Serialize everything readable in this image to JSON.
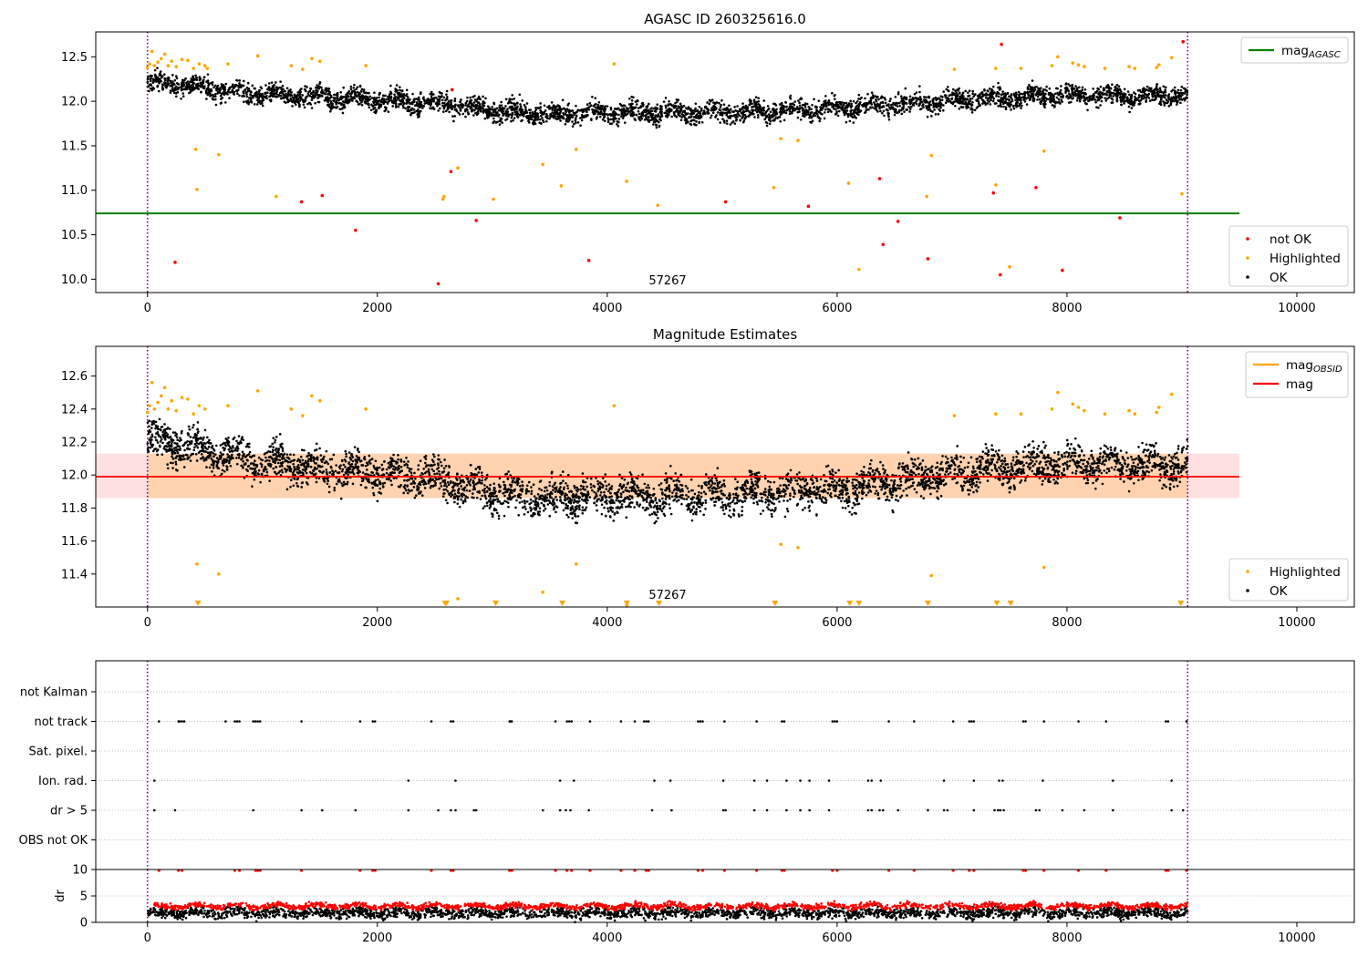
{
  "chart_data": [
    {
      "type": "scatter",
      "title": "AGASC ID 260325616.0",
      "xlim": [
        -450,
        10500
      ],
      "ylim": [
        9.85,
        12.78
      ],
      "xticks": [
        0,
        2000,
        4000,
        6000,
        8000,
        10000
      ],
      "yticks": [
        10.0,
        10.5,
        11.0,
        11.5,
        12.0,
        12.5
      ],
      "ytick_labels": [
        "10.0",
        "10.5",
        "11.0",
        "11.5",
        "12.0",
        "12.5"
      ],
      "grid": false,
      "vlines": [
        0,
        9050
      ],
      "hline": {
        "name": "mag_AGASC",
        "value": 10.74,
        "x_range": [
          -450,
          9500
        ],
        "color": "#008000"
      },
      "annotation": {
        "text": "57267",
        "x": 4520,
        "y": 9.9
      },
      "legend_top": {
        "placement": "upper right",
        "items": [
          {
            "label": "mag",
            "sub": "AGASC",
            "color": "#008000",
            "kind": "line"
          }
        ]
      },
      "legend_bottom": {
        "placement": "lower right",
        "items": [
          {
            "label": "not OK",
            "color": "#ff0000",
            "kind": "dot"
          },
          {
            "label": "Highlighted",
            "color": "#ffa500",
            "kind": "dot"
          },
          {
            "label": "OK",
            "color": "#000000",
            "kind": "dot"
          }
        ]
      },
      "series": [
        {
          "name": "OK",
          "color": "#000000",
          "kind": "band",
          "x": [
            0,
            500,
            1000,
            1500,
            2000,
            2500,
            3000,
            3500,
            4000,
            4500,
            5000,
            5500,
            6000,
            6500,
            7000,
            7500,
            8000,
            8500,
            9000
          ],
          "center": [
            12.22,
            12.15,
            12.08,
            12.04,
            12.02,
            11.98,
            11.9,
            11.86,
            11.88,
            11.87,
            11.88,
            11.9,
            11.92,
            11.96,
            12.02,
            12.04,
            12.08,
            12.06,
            12.06
          ],
          "spread": 0.1,
          "n": 4200,
          "x_end": 9050
        },
        {
          "name": "Highlighted",
          "color": "#ffa500",
          "x": [
            0,
            20,
            40,
            60,
            90,
            120,
            150,
            180,
            210,
            250,
            300,
            350,
            400,
            450,
            500,
            520,
            700,
            960,
            1250,
            1350,
            1430,
            1500,
            1900,
            4060,
            7020,
            7380,
            7600,
            7870,
            7920,
            8050,
            8100,
            8150,
            8330,
            8540,
            8590,
            8780,
            8800,
            8910,
            420,
            430,
            620,
            1120,
            2570,
            2580,
            2700,
            3010,
            3440,
            3600,
            3730,
            4170,
            4440,
            5450,
            5510,
            5660,
            6100,
            6190,
            6780,
            6820,
            7380,
            7500,
            7800,
            9000
          ],
          "y": [
            12.38,
            12.42,
            12.56,
            12.4,
            12.44,
            12.48,
            12.53,
            12.4,
            12.45,
            12.39,
            12.47,
            12.46,
            12.37,
            12.42,
            12.4,
            12.37,
            12.42,
            12.51,
            12.4,
            12.36,
            12.48,
            12.45,
            12.4,
            12.42,
            12.36,
            12.37,
            12.37,
            12.4,
            12.5,
            12.43,
            12.41,
            12.39,
            12.37,
            12.39,
            12.37,
            12.38,
            12.41,
            12.49,
            11.46,
            11.01,
            11.4,
            10.93,
            10.9,
            10.93,
            11.25,
            10.9,
            11.29,
            11.05,
            11.46,
            11.1,
            10.83,
            11.03,
            11.58,
            11.56,
            11.08,
            10.11,
            10.93,
            11.39,
            11.06,
            10.14,
            11.44,
            10.96
          ]
        },
        {
          "name": "not OK",
          "color": "#ff0000",
          "x": [
            240,
            1340,
            1520,
            1810,
            2530,
            2640,
            2860,
            3840,
            5030,
            5750,
            6370,
            6400,
            6530,
            6790,
            7360,
            7420,
            7730,
            7960,
            8460,
            9010,
            7430,
            2650
          ],
          "y": [
            10.19,
            10.87,
            10.94,
            10.55,
            9.95,
            11.21,
            10.66,
            10.21,
            10.87,
            10.82,
            11.13,
            10.39,
            10.65,
            10.23,
            10.97,
            10.05,
            11.03,
            10.1,
            10.69,
            12.67,
            12.64,
            12.13
          ]
        }
      ]
    },
    {
      "type": "scatter",
      "title": "Magnitude Estimates",
      "xlim": [
        -450,
        10500
      ],
      "ylim": [
        11.2,
        12.78
      ],
      "xticks": [
        0,
        2000,
        4000,
        6000,
        8000,
        10000
      ],
      "yticks": [
        11.4,
        11.6,
        11.8,
        12.0,
        12.2,
        12.4,
        12.6
      ],
      "ytick_labels": [
        "11.4",
        "11.6",
        "11.8",
        "12.0",
        "12.2",
        "12.4",
        "12.6"
      ],
      "grid": false,
      "vlines": [
        0,
        9050
      ],
      "mag": {
        "name": "mag",
        "value": 11.99,
        "x_range": [
          -450,
          9500
        ],
        "color": "#ff0000",
        "band": [
          11.86,
          12.13
        ]
      },
      "mag_obsid": {
        "name": "mag_OBSID",
        "value": 11.99,
        "x_range": [
          0,
          9050
        ],
        "color": "#ffa500",
        "band": [
          11.86,
          12.13
        ]
      },
      "annotation": {
        "text": "57267",
        "x": 4520,
        "y": 11.26
      },
      "legend_top": {
        "placement": "upper right",
        "items": [
          {
            "label": "mag",
            "sub": "OBSID",
            "color": "#ffa500",
            "kind": "line"
          },
          {
            "label": "mag",
            "sub": "",
            "color": "#ff0000",
            "kind": "line"
          }
        ]
      },
      "legend_bottom": {
        "placement": "lower right",
        "items": [
          {
            "label": "Highlighted",
            "color": "#ffa500",
            "kind": "dot"
          },
          {
            "label": "OK",
            "color": "#000000",
            "kind": "dot"
          }
        ]
      },
      "lower_limit_markers": {
        "color": "#ffa500",
        "y": 11.2,
        "x": [
          440,
          2590,
          2600,
          3030,
          3610,
          4170,
          4450,
          5460,
          6110,
          6190,
          6790,
          7390,
          7510,
          8990
        ]
      },
      "series": [
        {
          "name": "OK",
          "color": "#000000",
          "kind": "band",
          "x": [
            0,
            500,
            1000,
            1500,
            2000,
            2500,
            3000,
            3500,
            4000,
            4500,
            5000,
            5500,
            6000,
            6500,
            7000,
            7500,
            8000,
            8500,
            9000
          ],
          "center": [
            12.22,
            12.15,
            12.08,
            12.04,
            12.02,
            11.98,
            11.9,
            11.86,
            11.88,
            11.87,
            11.88,
            11.9,
            11.92,
            11.96,
            12.02,
            12.04,
            12.08,
            12.06,
            12.06
          ],
          "spread": 0.1,
          "n": 4200,
          "x_end": 9050
        },
        {
          "name": "Highlighted",
          "color": "#ffa500",
          "x": [
            0,
            20,
            40,
            60,
            90,
            120,
            150,
            180,
            210,
            250,
            300,
            350,
            400,
            450,
            500,
            700,
            960,
            1250,
            1350,
            1430,
            1500,
            1900,
            4060,
            7020,
            7380,
            7600,
            7870,
            7920,
            8050,
            8100,
            8150,
            8330,
            8540,
            8590,
            8780,
            8800,
            8910,
            430,
            620,
            2700,
            3440,
            3730,
            5510,
            5660,
            6820,
            7800,
            4170
          ],
          "y": [
            12.38,
            12.42,
            12.56,
            12.4,
            12.44,
            12.48,
            12.53,
            12.4,
            12.45,
            12.39,
            12.47,
            12.46,
            12.37,
            12.42,
            12.4,
            12.42,
            12.51,
            12.4,
            12.36,
            12.48,
            12.45,
            12.4,
            12.42,
            12.36,
            12.37,
            12.37,
            12.4,
            12.5,
            12.43,
            12.41,
            12.39,
            12.37,
            12.39,
            12.37,
            12.38,
            12.41,
            12.49,
            11.46,
            11.4,
            11.25,
            11.29,
            11.46,
            11.58,
            11.56,
            11.39,
            11.44,
            11.21
          ]
        }
      ]
    },
    {
      "type": "scatter",
      "title": "",
      "xlim": [
        -450,
        10500
      ],
      "category_axis": [
        "not Kalman",
        "not track",
        "Sat. pixel.",
        "Ion. rad.",
        "dr > 5",
        "OBS not OK"
      ],
      "grid": true,
      "vlines": [
        0,
        9050
      ],
      "flags": {
        "not Kalman": [],
        "not track": [
          100,
          270,
          280,
          300,
          320,
          680,
          760,
          780,
          800,
          920,
          940,
          960,
          980,
          1340,
          1850,
          1960,
          1980,
          2470,
          2640,
          2660,
          3150,
          3160,
          3170,
          3550,
          3650,
          3670,
          3690,
          3850,
          4120,
          4240,
          4320,
          4340,
          4360,
          4790,
          4810,
          4830,
          5020,
          5300,
          5520,
          5540,
          5960,
          5980,
          6000,
          6450,
          6670,
          7010,
          7150,
          7170,
          7190,
          7620,
          7640,
          7800,
          8100,
          8340,
          8860,
          8880,
          9040
        ],
        "Sat. pixel.": [],
        "Ion. rad.": [
          60,
          2270,
          2680,
          3590,
          3710,
          4410,
          4550,
          5010,
          5280,
          5390,
          5560,
          5680,
          5760,
          5930,
          6270,
          6300,
          6380,
          6930,
          7190,
          7410,
          7440,
          7790,
          8400,
          8910
        ],
        "dr > 5": [
          60,
          240,
          920,
          1340,
          1520,
          1810,
          2270,
          2530,
          2640,
          2680,
          2840,
          2860,
          3440,
          3590,
          3640,
          3680,
          3840,
          4390,
          4560,
          5010,
          5030,
          5280,
          5390,
          5560,
          5680,
          5760,
          5930,
          6270,
          6300,
          6370,
          6400,
          6530,
          6790,
          6930,
          6960,
          7190,
          7370,
          7400,
          7420,
          7450,
          7730,
          7760,
          7960,
          8150,
          8400,
          8910,
          9010
        ],
        "OBS not OK": []
      }
    },
    {
      "type": "scatter",
      "title": "",
      "ylabel": "dr",
      "xlim": [
        -450,
        10500
      ],
      "ylim": [
        0,
        10
      ],
      "xticks": [
        0,
        2000,
        4000,
        6000,
        8000,
        10000
      ],
      "yticks": [
        0,
        5,
        10
      ],
      "ytick_labels": [
        "0",
        "5",
        "10"
      ],
      "grid": true,
      "vlines": [
        0,
        9050
      ],
      "series": [
        {
          "name": "OK",
          "color": "#000000",
          "kind": "band",
          "center_const": 1.8,
          "spread": 0.9,
          "n": 2600,
          "x_start": 0,
          "x_end": 9050
        },
        {
          "name": "not OK",
          "color": "#ff0000",
          "kind": "band",
          "center_const": 3.1,
          "spread": 0.45,
          "n": 1900,
          "x_start": 60,
          "x_end": 9050
        },
        {
          "name": "dr capped",
          "color": "#ff0000",
          "kind": "cap",
          "value": 10,
          "x": [
            100,
            270,
            300,
            760,
            800,
            940,
            960,
            980,
            1340,
            1850,
            1960,
            1980,
            2470,
            2640,
            2660,
            3150,
            3170,
            3550,
            3650,
            3690,
            3850,
            4120,
            4240,
            4340,
            4360,
            4790,
            4830,
            5020,
            5300,
            5520,
            5540,
            5960,
            6000,
            6450,
            6670,
            7010,
            7150,
            7190,
            7620,
            7640,
            7800,
            8100,
            8340,
            8860,
            8880,
            9040
          ]
        }
      ]
    }
  ]
}
